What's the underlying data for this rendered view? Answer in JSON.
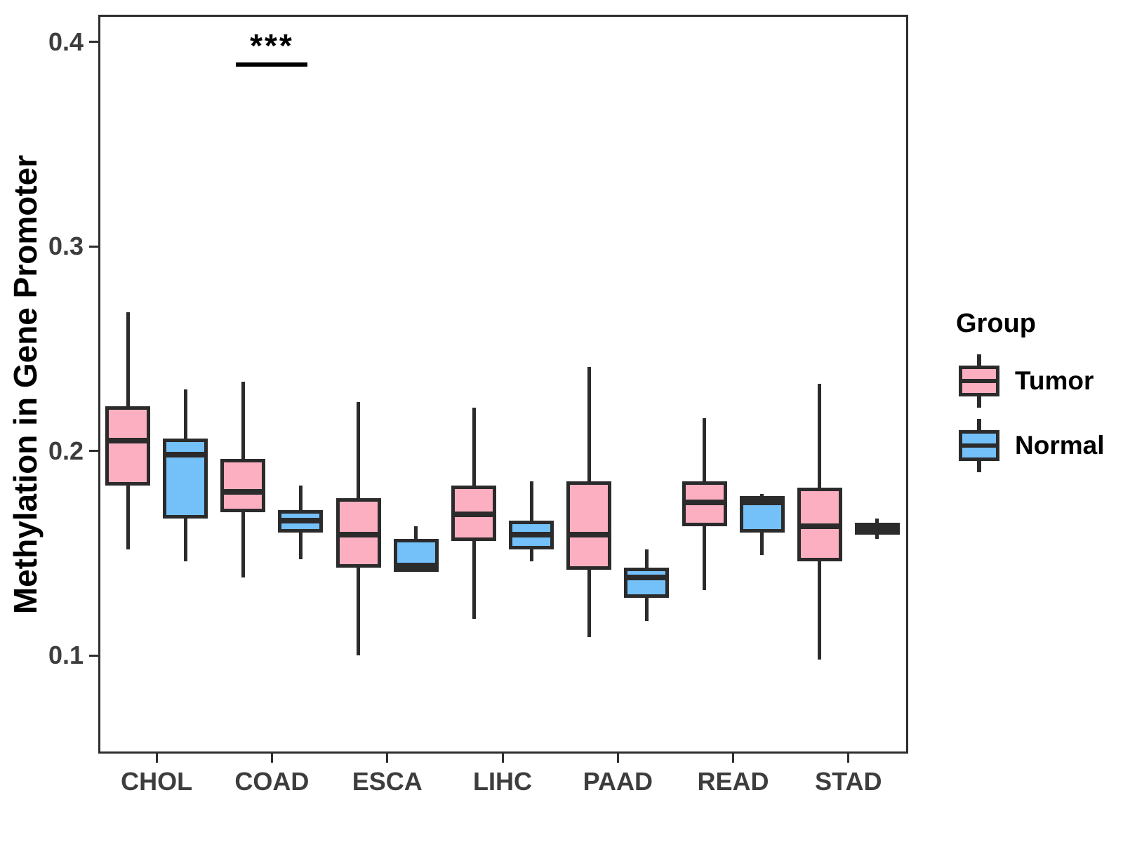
{
  "legend": {
    "title": "Group",
    "items": [
      {
        "label": "Tumor",
        "color": "#FBAFC0"
      },
      {
        "label": "Normal",
        "color": "#74C0F8"
      }
    ]
  },
  "colors": {
    "tumor_fill": "#FBAFC0",
    "normal_fill": "#74C0F8",
    "box_stroke": "#2b2b2b",
    "axis_stroke": "#2e2e2e",
    "tick_text": "#3d3d3d",
    "annotation": "#000000"
  },
  "chart_data": {
    "type": "grouped_boxplot",
    "title": "",
    "xlabel": "",
    "ylabel": "Methylation in Gene Promoter",
    "categories": [
      "CHOL",
      "COAD",
      "ESCA",
      "LIHC",
      "PAAD",
      "READ",
      "STAD"
    ],
    "ylim": [
      0.053,
      0.413
    ],
    "yticks": {
      "values": [
        0.1,
        0.2,
        0.3,
        0.4
      ],
      "labels": [
        "0.1",
        "0.2",
        "0.3",
        "0.4"
      ]
    },
    "grid": false,
    "legend_position": "right",
    "series": [
      {
        "name": "Tumor",
        "fill": "#FBAFC0",
        "boxes": [
          {
            "category": "CHOL",
            "min": 0.152,
            "q1": 0.183,
            "median": 0.205,
            "q3": 0.222,
            "max": 0.268
          },
          {
            "category": "COAD",
            "min": 0.138,
            "q1": 0.17,
            "median": 0.18,
            "q3": 0.196,
            "max": 0.234
          },
          {
            "category": "ESCA",
            "min": 0.1,
            "q1": 0.143,
            "median": 0.159,
            "q3": 0.177,
            "max": 0.224
          },
          {
            "category": "LIHC",
            "min": 0.118,
            "q1": 0.156,
            "median": 0.169,
            "q3": 0.183,
            "max": 0.221
          },
          {
            "category": "PAAD",
            "min": 0.109,
            "q1": 0.142,
            "median": 0.159,
            "q3": 0.185,
            "max": 0.241
          },
          {
            "category": "READ",
            "min": 0.132,
            "q1": 0.163,
            "median": 0.175,
            "q3": 0.185,
            "max": 0.216
          },
          {
            "category": "STAD",
            "min": 0.098,
            "q1": 0.146,
            "median": 0.163,
            "q3": 0.182,
            "max": 0.233
          }
        ]
      },
      {
        "name": "Normal",
        "fill": "#74C0F8",
        "boxes": [
          {
            "category": "CHOL",
            "min": 0.146,
            "q1": 0.167,
            "median": 0.198,
            "q3": 0.206,
            "max": 0.23
          },
          {
            "category": "COAD",
            "min": 0.147,
            "q1": 0.16,
            "median": 0.166,
            "q3": 0.171,
            "max": 0.183
          },
          {
            "category": "ESCA",
            "min": 0.141,
            "q1": 0.141,
            "median": 0.144,
            "q3": 0.157,
            "max": 0.163
          },
          {
            "category": "LIHC",
            "min": 0.146,
            "q1": 0.152,
            "median": 0.159,
            "q3": 0.166,
            "max": 0.185
          },
          {
            "category": "PAAD",
            "min": 0.117,
            "q1": 0.128,
            "median": 0.138,
            "q3": 0.143,
            "max": 0.152
          },
          {
            "category": "READ",
            "min": 0.149,
            "q1": 0.16,
            "median": 0.175,
            "q3": 0.178,
            "max": 0.179
          },
          {
            "category": "STAD",
            "min": 0.157,
            "q1": 0.159,
            "median": 0.162,
            "q3": 0.165,
            "max": 0.167
          }
        ]
      }
    ],
    "annotations": [
      {
        "type": "significance",
        "category": "COAD",
        "label": "***",
        "bar_y": 0.389,
        "label_y": 0.398
      }
    ]
  }
}
